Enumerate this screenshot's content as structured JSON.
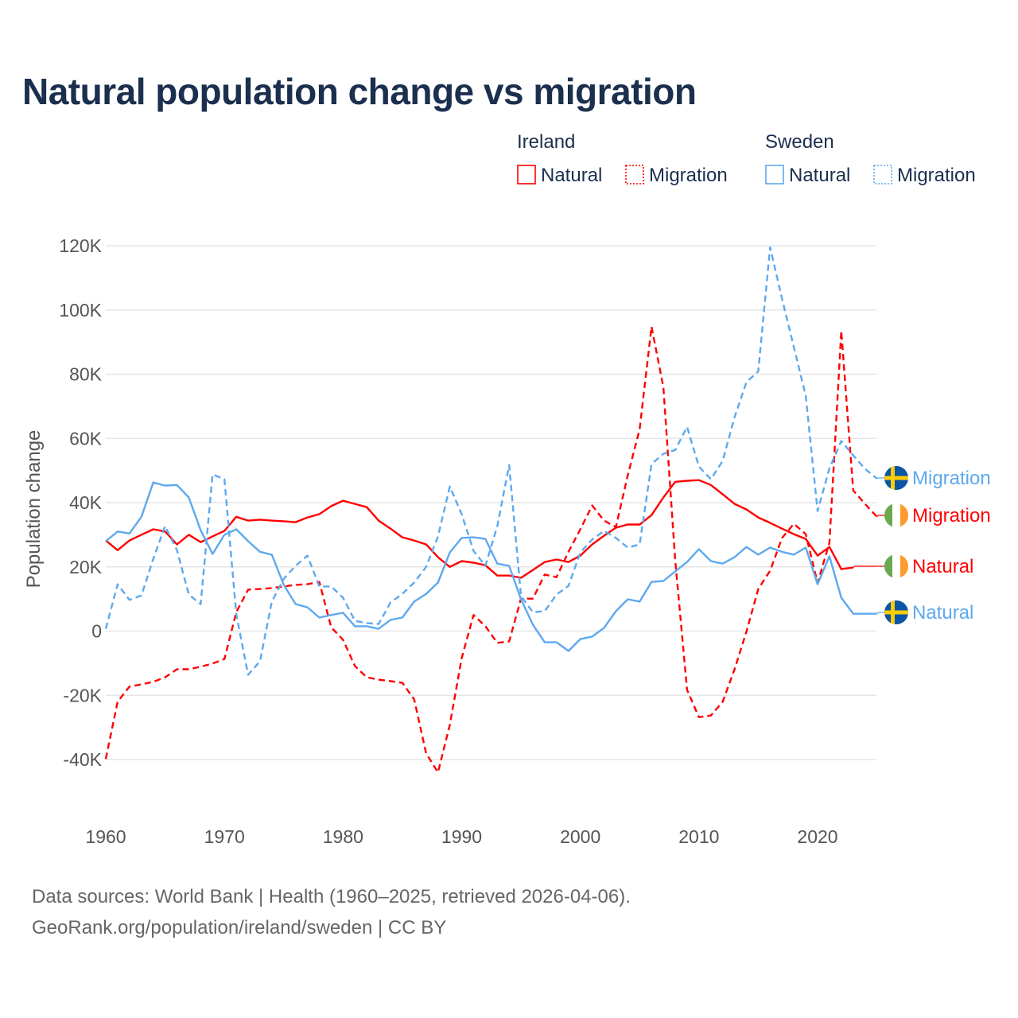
{
  "title": "Natural population change vs migration",
  "footer": {
    "line1": "Data sources: World Bank | Health (1960–2025, retrieved 2026-04-06).",
    "line2": "GeoRank.org/population/ireland/sweden | CC BY"
  },
  "legend": {
    "groups": [
      {
        "name": "Ireland",
        "items": [
          {
            "label": "Natural",
            "style": "solid",
            "color": "#ff0000"
          },
          {
            "label": "Migration",
            "style": "dashed",
            "color": "#ff0000"
          }
        ]
      },
      {
        "name": "Sweden",
        "items": [
          {
            "label": "Natural",
            "style": "solid",
            "color": "#5ea9ee"
          },
          {
            "label": "Migration",
            "style": "dashed",
            "color": "#5ea9ee"
          }
        ]
      }
    ]
  },
  "chart_data": {
    "type": "line",
    "title": "Natural population change vs migration",
    "xlabel": "",
    "ylabel": "Population change",
    "xlim": [
      1960,
      2025
    ],
    "ylim": [
      -40000,
      120000
    ],
    "grid": true,
    "x_ticks": [
      1960,
      1970,
      1980,
      1990,
      2000,
      2010,
      2020
    ],
    "x_tick_labels": [
      "1960",
      "1970",
      "1980",
      "1990",
      "2000",
      "2010",
      "2020"
    ],
    "y_ticks": [
      -40000,
      -20000,
      0,
      20000,
      40000,
      60000,
      80000,
      100000,
      120000
    ],
    "y_tick_labels": [
      "-40K",
      "-20K",
      "0",
      "20K",
      "40K",
      "60K",
      "80K",
      "100K",
      "120K"
    ],
    "legend_position": "top-right",
    "series": [
      {
        "name": "Ireland Natural",
        "country": "ireland",
        "end_label": "Natural",
        "color": "#ff0000",
        "dashed": false,
        "start": 1960,
        "values": [
          28.2,
          25.2,
          28.2,
          30,
          31.7,
          31,
          27,
          30,
          27.7,
          29.5,
          31.2,
          35.6,
          34.4,
          34.7,
          34.4,
          34.2,
          33.9,
          35.4,
          36.4,
          38.9,
          40.6,
          39.6,
          38.6,
          34.4,
          31.9,
          29.2,
          28.2,
          27,
          23,
          20,
          21.8,
          21.3,
          20.5,
          17.3,
          17.3,
          16.6,
          19,
          21.5,
          22.3,
          21.5,
          23.5,
          27,
          29.7,
          32.2,
          33.2,
          33.2,
          36.1,
          41.6,
          46.5,
          46.8,
          47,
          45.5,
          42.6,
          39.6,
          37.9,
          35.4,
          33.7,
          31.9,
          30.2,
          28.7,
          23.5,
          26.2,
          19.3,
          19.8
        ]
      },
      {
        "name": "Ireland Migration",
        "country": "ireland",
        "end_label": "Migration",
        "color": "#ff0000",
        "dashed": true,
        "start": 1960,
        "values": [
          -39.8,
          -22,
          -17.3,
          -16.6,
          -15.8,
          -14.4,
          -11.9,
          -11.9,
          -11.1,
          -10.1,
          -8.7,
          5.9,
          12.9,
          13.1,
          13.4,
          13.9,
          14.4,
          14.6,
          15.3,
          1.2,
          -2.7,
          -10.9,
          -14.4,
          -15.1,
          -15.6,
          -16.1,
          -21.3,
          -38.1,
          -44,
          -29.2,
          -8.4,
          5,
          1.5,
          -3.7,
          -3.2,
          10.1,
          10.1,
          17.6,
          16.8,
          24.7,
          31.7,
          39.1,
          34.4,
          32.4,
          48.5,
          62.9,
          94.8,
          76,
          22,
          -18.3,
          -26.8,
          -26.3,
          -22,
          -11.9,
          -0.2,
          13.1,
          18.8,
          29,
          33.4,
          30.2,
          15,
          27.5,
          93.5,
          43.8,
          39.6,
          35.6
        ]
      },
      {
        "name": "Sweden Natural",
        "country": "sweden",
        "end_label": "Natural",
        "color": "#5ea9ee",
        "dashed": false,
        "start": 1960,
        "values": [
          28,
          31,
          30.4,
          35.6,
          46.3,
          45.3,
          45.5,
          41.6,
          31.4,
          24,
          30,
          31.7,
          28,
          24.7,
          23.8,
          14.4,
          8.4,
          7.4,
          4.2,
          5,
          5.7,
          1.5,
          1.5,
          0.7,
          3.5,
          4.2,
          9.2,
          11.6,
          15.1,
          24.5,
          29,
          29.2,
          28.7,
          21,
          20.3,
          9.9,
          2,
          -3.5,
          -3.5,
          -6.2,
          -2.5,
          -1.7,
          1,
          6.2,
          9.9,
          9.2,
          15.3,
          15.6,
          18.6,
          21.5,
          25.5,
          21.8,
          21,
          23,
          26.2,
          23.8,
          26,
          24.7,
          23.8,
          26,
          14.6,
          23.3,
          10.4,
          5.4,
          5.4,
          5.4
        ]
      },
      {
        "name": "Sweden Migration",
        "country": "sweden",
        "end_label": "Migration",
        "color": "#5ea9ee",
        "dashed": true,
        "start": 1960,
        "values": [
          0.7,
          14.6,
          9.7,
          11.1,
          22.5,
          32.7,
          25.2,
          11.4,
          8.4,
          48.8,
          47.3,
          5.2,
          -13.6,
          -9.4,
          9.2,
          16.3,
          20.3,
          23.5,
          13.9,
          13.9,
          10.4,
          3.2,
          2.5,
          2.2,
          8.9,
          11.6,
          15.1,
          20,
          29.5,
          45,
          36.4,
          25,
          20.3,
          32.7,
          51.7,
          10.9,
          5.9,
          6.2,
          11.4,
          14.1,
          24.5,
          28.5,
          31.2,
          29,
          26,
          27,
          52,
          55.2,
          56.4,
          63.6,
          51.2,
          47.3,
          53,
          66.6,
          77.5,
          80.9,
          119.5,
          103.5,
          88.4,
          73.3,
          37.4,
          50.7,
          59.2,
          54.7,
          50.5,
          47.5
        ]
      }
    ],
    "value_unit": "thousands"
  }
}
